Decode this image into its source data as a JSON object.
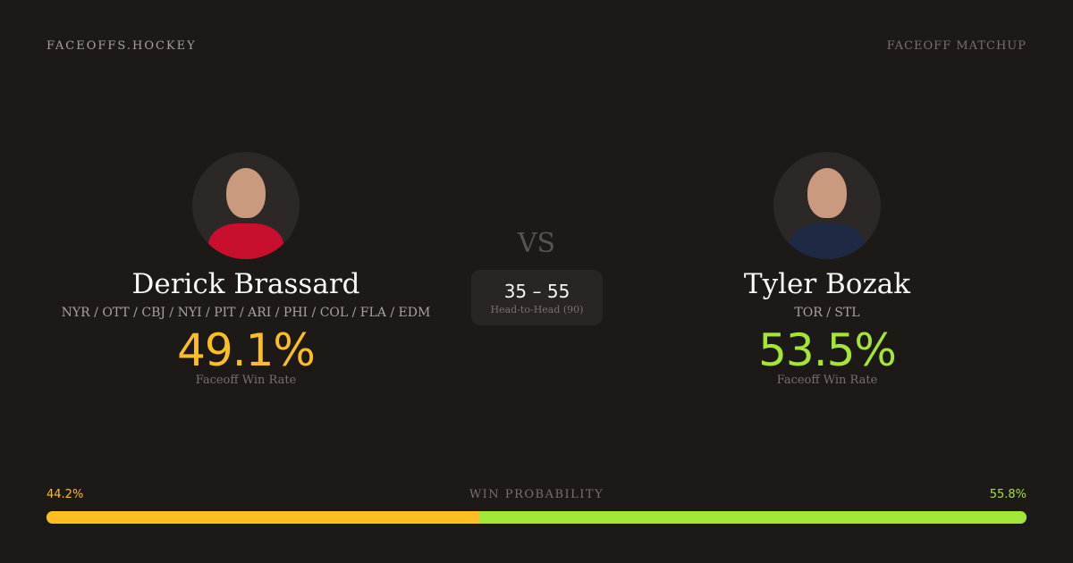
{
  "brand": "FACEOFFS.HOCKEY",
  "page_tag": "FACEOFF MATCHUP",
  "vs": "VS",
  "head_to_head": {
    "score": "35 – 55",
    "label": "Head-to-Head (90)"
  },
  "players": [
    {
      "name": "Derick Brassard",
      "teams": "NYR / OTT / CBJ / NYI / PIT / ARI / PHI / COL / FLA / EDM",
      "win_rate": "49.1%",
      "win_rate_label": "Faceoff Win Rate",
      "color": "#fbbf24",
      "jersey": "#c8102e"
    },
    {
      "name": "Tyler Bozak",
      "teams": "TOR / STL",
      "win_rate": "53.5%",
      "win_rate_label": "Faceoff Win Rate",
      "color": "#a3e635",
      "jersey": "#1e2a44"
    }
  ],
  "win_probability": {
    "label": "WIN PROBABILITY",
    "left": "44.2%",
    "right": "55.8%",
    "left_value": 44.2,
    "right_value": 55.8,
    "left_color": "#fbbf24",
    "right_color": "#a3e635"
  }
}
